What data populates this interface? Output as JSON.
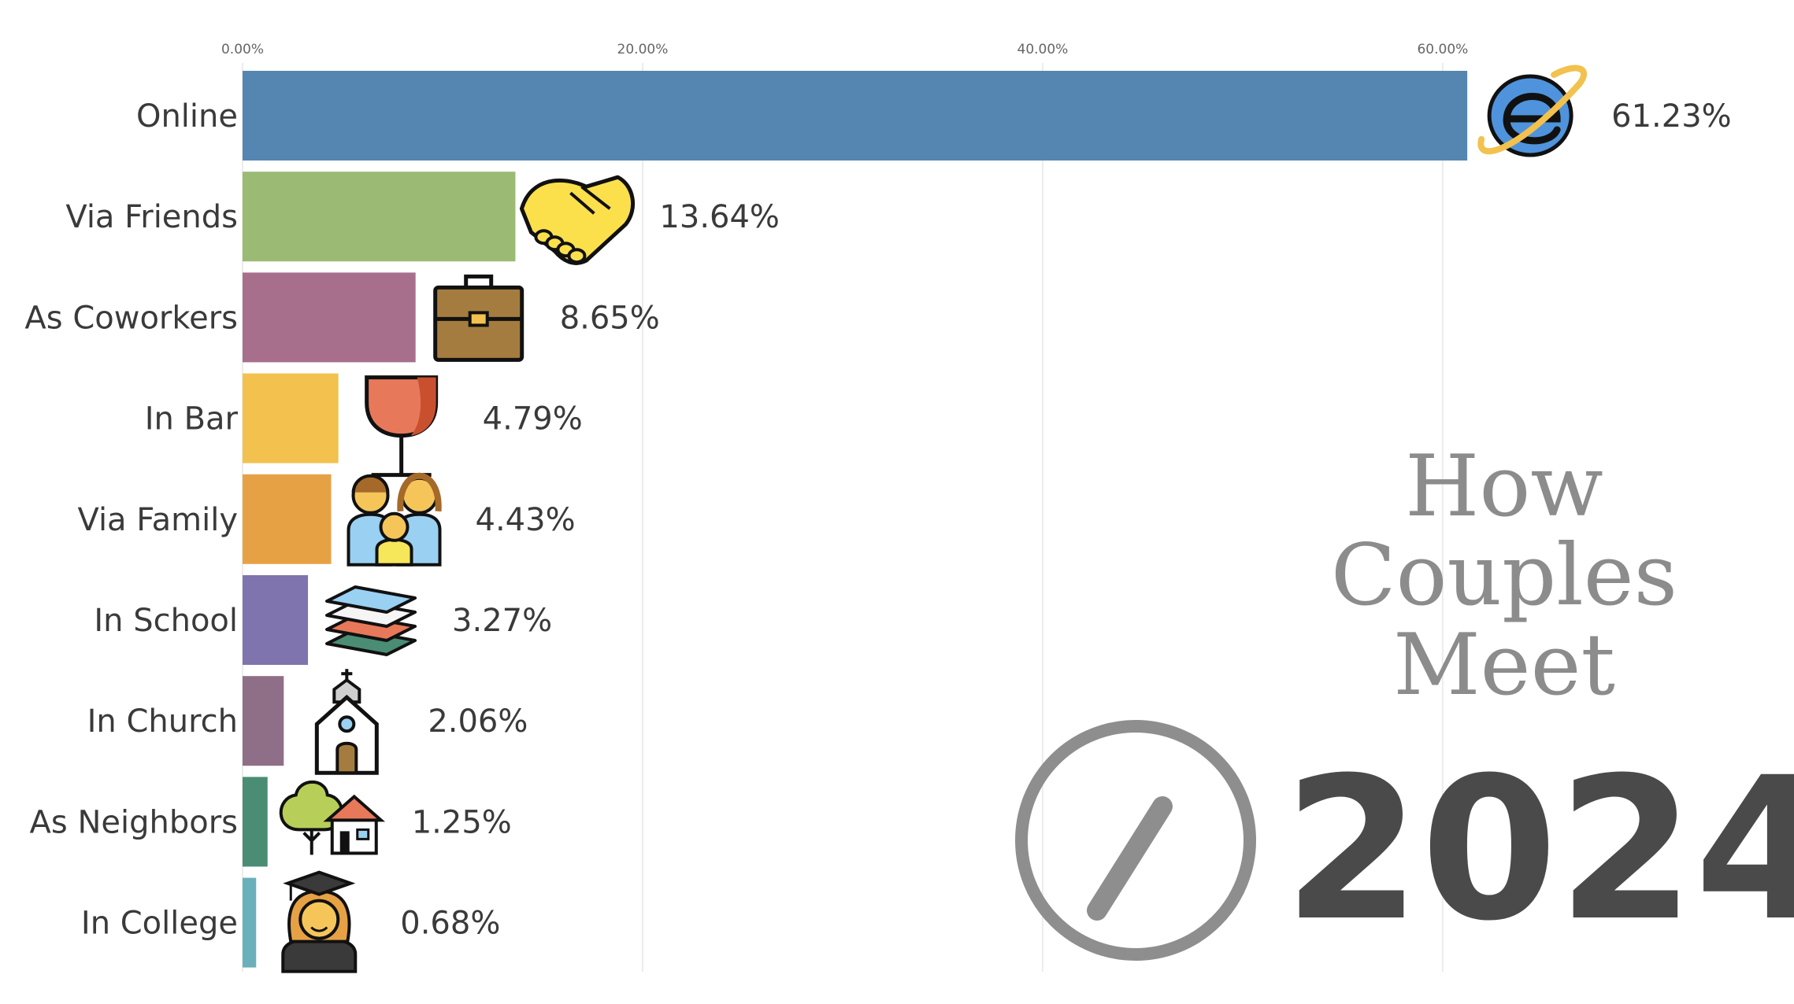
{
  "chart_data": {
    "type": "bar",
    "orientation": "horizontal",
    "title": "How Couples Meet",
    "title_lines": [
      "How",
      "Couples",
      "Meet"
    ],
    "year": "2024",
    "categories": [
      "Online",
      "Via Friends",
      "As Coworkers",
      "In Bar",
      "Via Family",
      "In School",
      "In Church",
      "As Neighbors",
      "In College"
    ],
    "values": [
      61.23,
      13.64,
      8.65,
      4.79,
      4.43,
      3.27,
      2.06,
      1.25,
      0.68
    ],
    "value_labels": [
      "61.23%",
      "13.64%",
      "8.65%",
      "4.79%",
      "4.43%",
      "3.27%",
      "2.06%",
      "1.25%",
      "0.68%"
    ],
    "colors": [
      "#5586b1",
      "#9bba74",
      "#a86f8c",
      "#f2c14e",
      "#e7a145",
      "#7f74ae",
      "#8f6f88",
      "#4a8d74",
      "#6ab0bb"
    ],
    "icons": [
      "internet-explorer-icon",
      "handshake-icon",
      "briefcase-icon",
      "wine-glass-icon",
      "family-icon",
      "books-icon",
      "church-icon",
      "tree-house-icon",
      "graduate-icon"
    ],
    "x_ticks": [
      0,
      20,
      40,
      60
    ],
    "x_tick_labels": [
      "0.00%",
      "20.00%",
      "40.00%",
      "60.00%"
    ],
    "xlim": [
      0,
      74.1
    ],
    "grid": true,
    "xlabel": "",
    "ylabel": ""
  }
}
